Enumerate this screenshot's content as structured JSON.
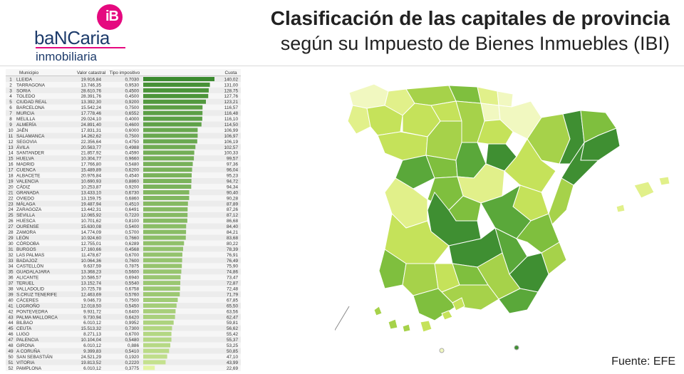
{
  "brand": {
    "badge": "iB",
    "name": "baNCaria",
    "sub": "inmobiliaria",
    "badge_color": "#e5097f",
    "text_color": "#1d3b6b"
  },
  "title": {
    "line1": "Clasificación de las capitales de provincia",
    "line2": "según su Impuesto de Bienes Inmuebles (IBI)"
  },
  "source": "Fuente: EFE",
  "chart_data": {
    "type": "bar",
    "orientation": "horizontal",
    "columns": [
      "Municipio",
      "Valor catastral",
      "Tipo impositivo",
      "Cuota"
    ],
    "rows": [
      {
        "rank": "1",
        "municipio": "LLEIDA",
        "valor": "19.916,84",
        "tipo": "0,7030",
        "cuota": "140,02",
        "value": 140.02
      },
      {
        "rank": "2",
        "municipio": "TARRAGONA",
        "valor": "13.746,35",
        "tipo": "0,9530",
        "cuota": "131,00",
        "value": 131.0
      },
      {
        "rank": "3",
        "municipio": "SORIA",
        "valor": "28.610,76",
        "tipo": "0,4500",
        "cuota": "128,75",
        "value": 128.75
      },
      {
        "rank": "4",
        "municipio": "TOLEDO",
        "valor": "28.391,76",
        "tipo": "0,4500",
        "cuota": "127,76",
        "value": 127.76
      },
      {
        "rank": "5",
        "municipio": "CIUDAD REAL",
        "valor": "13.392,30",
        "tipo": "0,9200",
        "cuota": "123,21",
        "value": 123.21
      },
      {
        "rank": "6",
        "municipio": "BARCELONA",
        "valor": "15.542,24",
        "tipo": "0,7500",
        "cuota": "116,57",
        "value": 116.57
      },
      {
        "rank": "7",
        "municipio": "MURCIA",
        "valor": "17.778,46",
        "tipo": "0,6552",
        "cuota": "116,48",
        "value": 116.48
      },
      {
        "rank": "8",
        "municipio": "MELILLA",
        "valor": "29.024,10",
        "tipo": "0,4000",
        "cuota": "116,10",
        "value": 116.1
      },
      {
        "rank": "9",
        "municipio": "ALMERÍA",
        "valor": "24.891,40",
        "tipo": "0,4600",
        "cuota": "114,50",
        "value": 114.5
      },
      {
        "rank": "10",
        "municipio": "JAÉN",
        "valor": "17.831,31",
        "tipo": "0,6000",
        "cuota": "106,99",
        "value": 106.99
      },
      {
        "rank": "11",
        "municipio": "SALAMANCA",
        "valor": "14.262,62",
        "tipo": "0,7500",
        "cuota": "106,97",
        "value": 106.97
      },
      {
        "rank": "12",
        "municipio": "SEGOVIA",
        "valor": "22.356,64",
        "tipo": "0,4750",
        "cuota": "106,19",
        "value": 106.19
      },
      {
        "rank": "13",
        "municipio": "ÁVILA",
        "valor": "20.563,77",
        "tipo": "0,4988",
        "cuota": "102,57",
        "value": 102.57
      },
      {
        "rank": "14",
        "municipio": "SANTANDER",
        "valor": "21.857,92",
        "tipo": "0,4590",
        "cuota": "100,33",
        "value": 100.33
      },
      {
        "rank": "15",
        "municipio": "HUELVA",
        "valor": "10.304,77",
        "tipo": "0,9660",
        "cuota": "99,57",
        "value": 99.57
      },
      {
        "rank": "16",
        "municipio": "MADRID",
        "valor": "17.766,80",
        "tipo": "0,5480",
        "cuota": "97,36",
        "value": 97.36
      },
      {
        "rank": "17",
        "municipio": "CUENCA",
        "valor": "15.489,89",
        "tipo": "0,6200",
        "cuota": "96,04",
        "value": 96.04
      },
      {
        "rank": "18",
        "municipio": "ALBACETE",
        "valor": "20.976,84",
        "tipo": "0,4540",
        "cuota": "95,23",
        "value": 95.23
      },
      {
        "rank": "19",
        "municipio": "VALENCIA",
        "valor": "10.690,93",
        "tipo": "0,8860",
        "cuota": "94,72",
        "value": 94.72
      },
      {
        "rank": "20",
        "municipio": "CÁDIZ",
        "valor": "10.253,87",
        "tipo": "0,9200",
        "cuota": "94,34",
        "value": 94.34
      },
      {
        "rank": "21",
        "municipio": "GRANADA",
        "valor": "13.433,10",
        "tipo": "0,6730",
        "cuota": "90,40",
        "value": 90.4
      },
      {
        "rank": "22",
        "municipio": "OVIEDO",
        "valor": "13.159,75",
        "tipo": "0,6860",
        "cuota": "90,28",
        "value": 90.28
      },
      {
        "rank": "23",
        "municipio": "MÁLAGA",
        "valor": "19.487,94",
        "tipo": "0,4510",
        "cuota": "87,89",
        "value": 87.89
      },
      {
        "rank": "24",
        "municipio": "ZARAGOZA",
        "valor": "13.442,31",
        "tipo": "0,6491",
        "cuota": "87,26",
        "value": 87.26
      },
      {
        "rank": "25",
        "municipio": "SEVILLA",
        "valor": "12.065,92",
        "tipo": "0,7220",
        "cuota": "87,12",
        "value": 87.12
      },
      {
        "rank": "26",
        "municipio": "HUESCA",
        "valor": "10.701,62",
        "tipo": "0,8100",
        "cuota": "86,68",
        "value": 86.68
      },
      {
        "rank": "27",
        "municipio": "OURENSE",
        "valor": "15.630,08",
        "tipo": "0,5400",
        "cuota": "84,40",
        "value": 84.4
      },
      {
        "rank": "28",
        "municipio": "ZAMORA",
        "valor": "14.774,09",
        "tipo": "0,5700",
        "cuota": "84,21",
        "value": 84.21
      },
      {
        "rank": "29",
        "municipio": "LEÓN",
        "valor": "10.924,60",
        "tipo": "0,7660",
        "cuota": "83,68",
        "value": 83.68
      },
      {
        "rank": "30",
        "municipio": "CÓRDOBA",
        "valor": "12.755,01",
        "tipo": "0,6289",
        "cuota": "80,22",
        "value": 80.22
      },
      {
        "rank": "31",
        "municipio": "BURGOS",
        "valor": "17.160,66",
        "tipo": "0,4568",
        "cuota": "78,39",
        "value": 78.39
      },
      {
        "rank": "32",
        "municipio": "LAS PALMAS",
        "valor": "11.478,67",
        "tipo": "0,6700",
        "cuota": "76,91",
        "value": 76.91
      },
      {
        "rank": "33",
        "municipio": "BADAJOZ",
        "valor": "10.064,36",
        "tipo": "0,7600",
        "cuota": "76,49",
        "value": 76.49
      },
      {
        "rank": "34",
        "municipio": "CASTELLÓN",
        "valor": "9.637,59",
        "tipo": "0,7875",
        "cuota": "75,90",
        "value": 75.9
      },
      {
        "rank": "35",
        "municipio": "GUADALAJARA",
        "valor": "13.368,23",
        "tipo": "0,5600",
        "cuota": "74,86",
        "value": 74.86
      },
      {
        "rank": "36",
        "municipio": "ALICANTE",
        "valor": "10.586,57",
        "tipo": "0,6940",
        "cuota": "73,47",
        "value": 73.47
      },
      {
        "rank": "37",
        "municipio": "TERUEL",
        "valor": "13.152,74",
        "tipo": "0,5540",
        "cuota": "72,87",
        "value": 72.87
      },
      {
        "rank": "38",
        "municipio": "VALLADOLID",
        "valor": "10.725,78",
        "tipo": "0,6758",
        "cuota": "72,48",
        "value": 72.48
      },
      {
        "rank": "39",
        "municipio": "S.CRUZ TENERIFE",
        "valor": "12.463,69",
        "tipo": "0,5760",
        "cuota": "71,79",
        "value": 71.79
      },
      {
        "rank": "40",
        "municipio": "CÁCERES",
        "valor": "9.046,73",
        "tipo": "0,7500",
        "cuota": "67,85",
        "value": 67.85
      },
      {
        "rank": "41",
        "municipio": "LOGROÑO",
        "valor": "12.018,50",
        "tipo": "0,5450",
        "cuota": "65,50",
        "value": 65.5
      },
      {
        "rank": "42",
        "municipio": "PONTEVEDRA",
        "valor": "9.931,72",
        "tipo": "0,6400",
        "cuota": "63,56",
        "value": 63.56
      },
      {
        "rank": "43",
        "municipio": "PALMA MALLORCA",
        "valor": "9.730,94",
        "tipo": "0,6420",
        "cuota": "62,47",
        "value": 62.47
      },
      {
        "rank": "44",
        "municipio": "BILBAO",
        "valor": "6.010,12",
        "tipo": "0,9952",
        "cuota": "59,81",
        "value": 59.81
      },
      {
        "rank": "45",
        "municipio": "CEUTA",
        "valor": "15.513,32",
        "tipo": "0,7300",
        "cuota": "56,62",
        "value": 56.62
      },
      {
        "rank": "46",
        "municipio": "LUGO",
        "valor": "8.271,13",
        "tipo": "0,6700",
        "cuota": "55,42",
        "value": 55.42
      },
      {
        "rank": "47",
        "municipio": "PALENCIA",
        "valor": "10.104,04",
        "tipo": "0,5480",
        "cuota": "55,37",
        "value": 55.37
      },
      {
        "rank": "48",
        "municipio": "GIRONA",
        "valor": "6.010,12",
        "tipo": "0,886",
        "cuota": "53,25",
        "value": 53.25
      },
      {
        "rank": "49",
        "municipio": "A CORUÑA",
        "valor": "9.399,83",
        "tipo": "0,5410",
        "cuota": "50,85",
        "value": 50.85
      },
      {
        "rank": "50",
        "municipio": "SAN SEBASTIÁN",
        "valor": "24.521,29",
        "tipo": "0,1920",
        "cuota": "47,10",
        "value": 47.1
      },
      {
        "rank": "51",
        "municipio": "VITORIA",
        "valor": "19.813,52",
        "tipo": "0,2220",
        "cuota": "43,99",
        "value": 43.99
      },
      {
        "rank": "52",
        "municipio": "PAMPLONA",
        "valor": "6.010,12",
        "tipo": "0,3775",
        "cuota": "22,69",
        "value": 22.69
      }
    ],
    "xlim": [
      0,
      140.02
    ],
    "colors": {
      "high": "#3a8a2e",
      "low": "#e6f7a6"
    }
  },
  "map": {
    "colors": [
      "#3f8f32",
      "#5aa83a",
      "#7fbf3e",
      "#a6d24a",
      "#c5e25a",
      "#e1f08a",
      "#f1f8c0"
    ],
    "border": "#ffffff"
  }
}
